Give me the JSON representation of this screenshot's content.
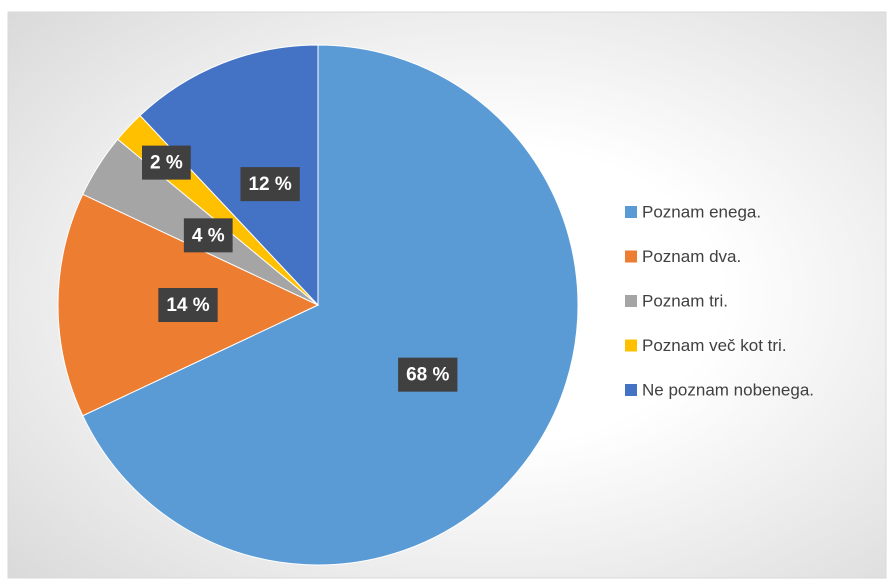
{
  "chart_data": {
    "type": "pie",
    "categories": [
      "Poznam enega.",
      "Poznam dva.",
      "Poznam tri.",
      "Poznam več kot tri.",
      "Ne poznam nobenega."
    ],
    "values": [
      68,
      14,
      4,
      2,
      12
    ],
    "value_labels": [
      "68 %",
      "14 %",
      "4 %",
      "2 %",
      "12 %"
    ],
    "colors": [
      "#5b9bd5",
      "#ed7d31",
      "#a5a5a5",
      "#ffc000",
      "#4472c4"
    ],
    "legend": "right"
  }
}
